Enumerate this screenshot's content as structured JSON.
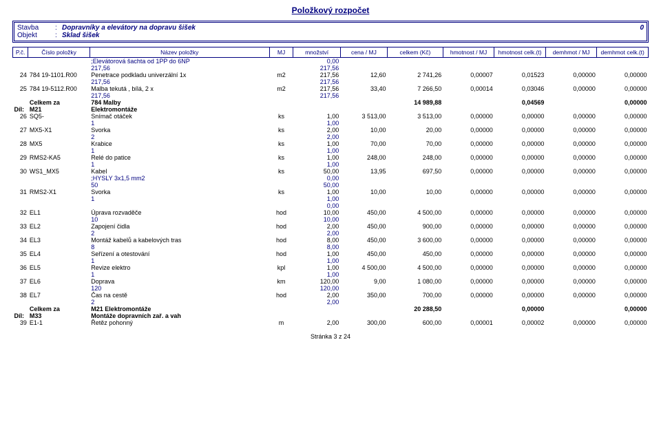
{
  "doc": {
    "title": "Položkový rozpočet",
    "header": {
      "stavba_lab": "Stavba",
      "stavba_sep": ":",
      "stavba_val": "Dopravníky a elevátory na dopravu šišek",
      "stavba_right": "0",
      "objekt_lab": "Objekt",
      "objekt_sep": ":",
      "objekt_val": "Sklad šišek"
    },
    "cols": [
      "P.č.",
      "Číslo položky",
      "Název položky",
      "MJ",
      "množství",
      "cena / MJ",
      "celkem (Kč)",
      "hmotnost / MJ",
      "hmotnost celk.(t)",
      "demhmot / MJ",
      "demhmot celk.(t)"
    ],
    "footer": "Stránka 3 z 24"
  },
  "rows": [
    {
      "t": "note",
      "naz": ";Elevátorová šachta od 1PP do 6NP",
      "mn": "0,00"
    },
    {
      "t": "note",
      "naz": "217,56",
      "mn": "217,56"
    },
    {
      "t": "item",
      "pc": "24",
      "cis": "784 19-1101.R00",
      "naz": "Penetrace podkladu univerzální 1x",
      "mj": "m2",
      "mn": "217,56",
      "cmj": "12,60",
      "cel": "2 741,26",
      "hmj": "0,00007",
      "hc": "0,01523",
      "dmj": "0,00000",
      "dc": "0,00000"
    },
    {
      "t": "note",
      "naz": "217,56",
      "mn": "217,56"
    },
    {
      "t": "item",
      "pc": "25",
      "cis": "784 19-5112.R00",
      "naz": "Malba tekutá , bílá, 2 x",
      "mj": "m2",
      "mn": "217,56",
      "cmj": "33,40",
      "cel": "7 266,50",
      "hmj": "0,00014",
      "hc": "0,03046",
      "dmj": "0,00000",
      "dc": "0,00000"
    },
    {
      "t": "note",
      "naz": "217,56",
      "mn": "217,56"
    },
    {
      "t": "sum",
      "cis": "Celkem za",
      "naz": "784 Malby",
      "cel": "14 989,88",
      "hc": "0,04569",
      "dc": "0,00000"
    },
    {
      "t": "dil",
      "pc": "Díl:",
      "cis": "M21",
      "naz": "Elektromontáže"
    },
    {
      "t": "item",
      "pc": "26",
      "cis": "SQ5-",
      "naz": "Snímač otáček",
      "mj": "ks",
      "mn": "1,00",
      "cmj": "3 513,00",
      "cel": "3 513,00",
      "hmj": "0,00000",
      "hc": "0,00000",
      "dmj": "0,00000",
      "dc": "0,00000"
    },
    {
      "t": "note",
      "naz": "1",
      "mn": "1,00"
    },
    {
      "t": "item",
      "pc": "27",
      "cis": "MX5-X1",
      "naz": "Svorka",
      "mj": "ks",
      "mn": "2,00",
      "cmj": "10,00",
      "cel": "20,00",
      "hmj": "0,00000",
      "hc": "0,00000",
      "dmj": "0,00000",
      "dc": "0,00000"
    },
    {
      "t": "note",
      "naz": "2",
      "mn": "2,00"
    },
    {
      "t": "item",
      "pc": "28",
      "cis": "MX5",
      "naz": "Krabice",
      "mj": "ks",
      "mn": "1,00",
      "cmj": "70,00",
      "cel": "70,00",
      "hmj": "0,00000",
      "hc": "0,00000",
      "dmj": "0,00000",
      "dc": "0,00000"
    },
    {
      "t": "note",
      "naz": "1",
      "mn": "1,00"
    },
    {
      "t": "item",
      "pc": "29",
      "cis": "RMS2-KA5",
      "naz": "Relé do patice",
      "mj": "ks",
      "mn": "1,00",
      "cmj": "248,00",
      "cel": "248,00",
      "hmj": "0,00000",
      "hc": "0,00000",
      "dmj": "0,00000",
      "dc": "0,00000"
    },
    {
      "t": "note",
      "naz": "1",
      "mn": "1,00"
    },
    {
      "t": "item",
      "pc": "30",
      "cis": "WS1_MX5",
      "naz": "Kabel",
      "mj": "ks",
      "mn": "50,00",
      "cmj": "13,95",
      "cel": "697,50",
      "hmj": "0,00000",
      "hc": "0,00000",
      "dmj": "0,00000",
      "dc": "0,00000"
    },
    {
      "t": "note",
      "naz": ";HYSLY 3x1,5 mm2",
      "mn": "0,00"
    },
    {
      "t": "note",
      "naz": "50",
      "mn": "50,00"
    },
    {
      "t": "item",
      "pc": "31",
      "cis": "RMS2-X1",
      "naz": "Svorka",
      "mj": "ks",
      "mn": "1,00",
      "cmj": "10,00",
      "cel": "10,00",
      "hmj": "0,00000",
      "hc": "0,00000",
      "dmj": "0,00000",
      "dc": "0,00000"
    },
    {
      "t": "note",
      "naz": "1",
      "mn": "1,00"
    },
    {
      "t": "note",
      "naz": "",
      "mn": "0,00"
    },
    {
      "t": "item",
      "pc": "32",
      "cis": "EL1",
      "naz": "Úprava rozvaděče",
      "mj": "hod",
      "mn": "10,00",
      "cmj": "450,00",
      "cel": "4 500,00",
      "hmj": "0,00000",
      "hc": "0,00000",
      "dmj": "0,00000",
      "dc": "0,00000"
    },
    {
      "t": "note",
      "naz": "10",
      "mn": "10,00"
    },
    {
      "t": "item",
      "pc": "33",
      "cis": "EL2",
      "naz": "Zapojení čidla",
      "mj": "hod",
      "mn": "2,00",
      "cmj": "450,00",
      "cel": "900,00",
      "hmj": "0,00000",
      "hc": "0,00000",
      "dmj": "0,00000",
      "dc": "0,00000"
    },
    {
      "t": "note",
      "naz": "2",
      "mn": "2,00"
    },
    {
      "t": "item",
      "pc": "34",
      "cis": "EL3",
      "naz": "Montáž kabelů a kabelových tras",
      "mj": "hod",
      "mn": "8,00",
      "cmj": "450,00",
      "cel": "3 600,00",
      "hmj": "0,00000",
      "hc": "0,00000",
      "dmj": "0,00000",
      "dc": "0,00000"
    },
    {
      "t": "note",
      "naz": "8",
      "mn": "8,00"
    },
    {
      "t": "item",
      "pc": "35",
      "cis": "EL4",
      "naz": "Seřízení a otestování",
      "mj": "hod",
      "mn": "1,00",
      "cmj": "450,00",
      "cel": "450,00",
      "hmj": "0,00000",
      "hc": "0,00000",
      "dmj": "0,00000",
      "dc": "0,00000"
    },
    {
      "t": "note",
      "naz": "1",
      "mn": "1,00"
    },
    {
      "t": "item",
      "pc": "36",
      "cis": "EL5",
      "naz": "Revize elektro",
      "mj": "kpl",
      "mn": "1,00",
      "cmj": "4 500,00",
      "cel": "4 500,00",
      "hmj": "0,00000",
      "hc": "0,00000",
      "dmj": "0,00000",
      "dc": "0,00000"
    },
    {
      "t": "note",
      "naz": "1",
      "mn": "1,00"
    },
    {
      "t": "item",
      "pc": "37",
      "cis": "EL6",
      "naz": "Doprava",
      "mj": "km",
      "mn": "120,00",
      "cmj": "9,00",
      "cel": "1 080,00",
      "hmj": "0,00000",
      "hc": "0,00000",
      "dmj": "0,00000",
      "dc": "0,00000"
    },
    {
      "t": "note",
      "naz": "120",
      "mn": "120,00"
    },
    {
      "t": "item",
      "pc": "38",
      "cis": "EL7",
      "naz": "Čas na cestě",
      "mj": "hod",
      "mn": "2,00",
      "cmj": "350,00",
      "cel": "700,00",
      "hmj": "0,00000",
      "hc": "0,00000",
      "dmj": "0,00000",
      "dc": "0,00000"
    },
    {
      "t": "note",
      "naz": "2",
      "mn": "2,00"
    },
    {
      "t": "sum",
      "cis": "Celkem za",
      "naz": "M21 Elektromontáže",
      "cel": "20 288,50",
      "hc": "0,00000",
      "dc": "0,00000"
    },
    {
      "t": "dil",
      "pc": "Díl:",
      "cis": "M33",
      "naz": "Montáže dopravních zař. a vah"
    },
    {
      "t": "item",
      "pc": "39",
      "cis": "E1-1",
      "naz": "Řetěz pohonný",
      "mj": "m",
      "mn": "2,00",
      "cmj": "300,00",
      "cel": "600,00",
      "hmj": "0,00001",
      "hc": "0,00002",
      "dmj": "0,00000",
      "dc": "0,00000"
    }
  ]
}
